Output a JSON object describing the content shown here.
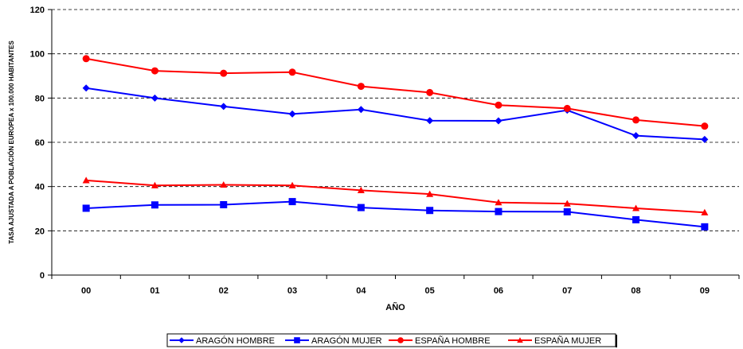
{
  "chart_data": {
    "type": "line",
    "title": "",
    "xlabel": "AÑO",
    "ylabel": "TASA AJUSTADA A POBLACIÓN EUROPEA x 100.000 HABITANTES",
    "categories": [
      "00",
      "01",
      "02",
      "03",
      "04",
      "05",
      "06",
      "07",
      "08",
      "09"
    ],
    "ylim": [
      0,
      120
    ],
    "yticks": [
      0,
      20,
      40,
      60,
      80,
      100,
      120
    ],
    "grid": "horizontal dashed",
    "legend_position": "bottom",
    "series": [
      {
        "name": "ARAGÓN HOMBRE",
        "color": "#0000ff",
        "marker": "diamond",
        "values": [
          84.5,
          80.0,
          76.2,
          72.8,
          74.8,
          69.8,
          69.7,
          74.5,
          63.0,
          61.3
        ]
      },
      {
        "name": "ARAGÓN MUJER",
        "color": "#0000ff",
        "marker": "square",
        "values": [
          30.2,
          31.7,
          31.8,
          33.2,
          30.5,
          29.2,
          28.7,
          28.6,
          25.0,
          21.8
        ]
      },
      {
        "name": "ESPAÑA HOMBRE",
        "color": "#ff0000",
        "marker": "circle",
        "values": [
          97.8,
          92.3,
          91.2,
          91.7,
          85.3,
          82.5,
          76.8,
          75.3,
          70.1,
          67.3
        ]
      },
      {
        "name": "ESPAÑA MUJER",
        "color": "#ff0000",
        "marker": "triangle",
        "values": [
          42.8,
          40.5,
          40.8,
          40.5,
          38.3,
          36.6,
          32.8,
          32.3,
          30.2,
          28.3
        ]
      }
    ]
  }
}
